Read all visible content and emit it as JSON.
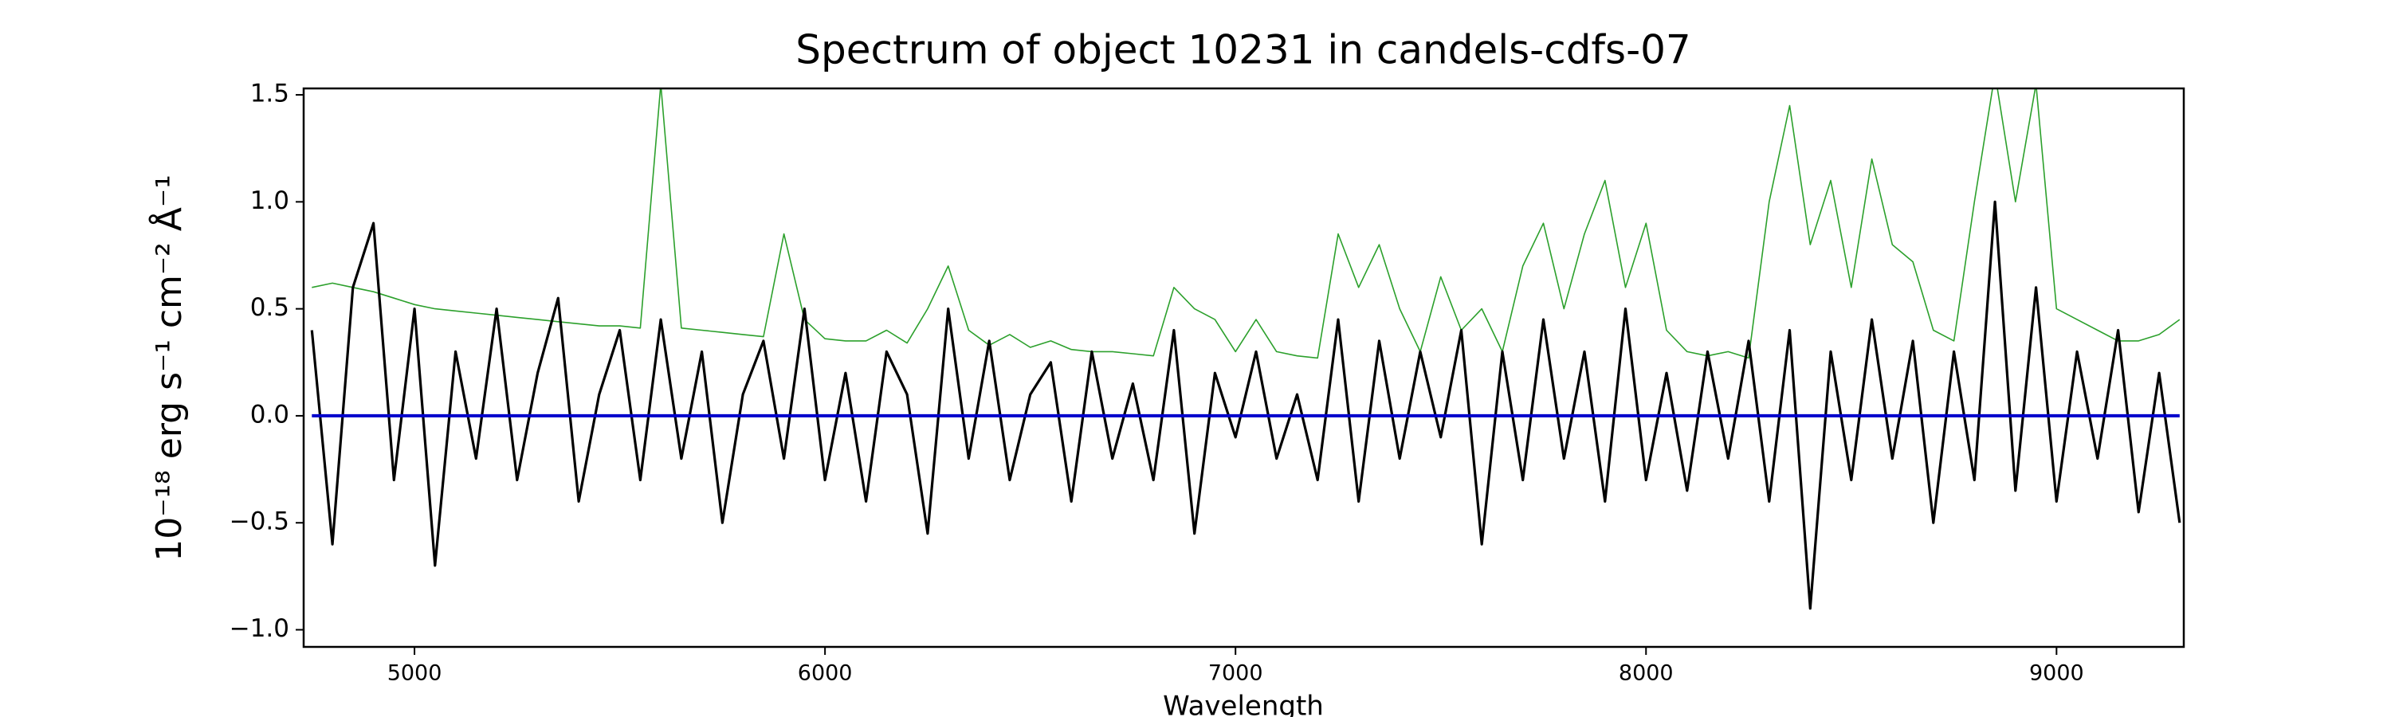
{
  "chart_data": {
    "type": "line",
    "title": "Spectrum of object 10231 in candels-cdfs-07",
    "xlabel": "Wavelength",
    "ylabel": "10⁻¹⁸ erg s⁻¹ cm⁻² Å⁻¹",
    "x": [
      4750,
      4800,
      4850,
      4900,
      4950,
      5000,
      5050,
      5100,
      5150,
      5200,
      5250,
      5300,
      5350,
      5400,
      5450,
      5500,
      5550,
      5600,
      5650,
      5700,
      5750,
      5800,
      5850,
      5900,
      5950,
      6000,
      6050,
      6100,
      6150,
      6200,
      6250,
      6300,
      6350,
      6400,
      6450,
      6500,
      6550,
      6600,
      6650,
      6700,
      6750,
      6800,
      6850,
      6900,
      6950,
      7000,
      7050,
      7100,
      7150,
      7200,
      7250,
      7300,
      7350,
      7400,
      7450,
      7500,
      7550,
      7600,
      7650,
      7700,
      7750,
      7800,
      7850,
      7900,
      7950,
      8000,
      8050,
      8100,
      8150,
      8200,
      8250,
      8300,
      8350,
      8400,
      8450,
      8500,
      8550,
      8600,
      8650,
      8700,
      8750,
      8800,
      8850,
      8900,
      8950,
      9000,
      9050,
      9100,
      9150,
      9200,
      9250,
      9300
    ],
    "series": [
      {
        "color": "#2ca02c",
        "values": [
          0.6,
          0.62,
          0.6,
          0.58,
          0.55,
          0.52,
          0.5,
          0.49,
          0.48,
          0.47,
          0.46,
          0.45,
          0.44,
          0.43,
          0.42,
          0.42,
          0.41,
          1.55,
          0.41,
          0.4,
          0.39,
          0.38,
          0.37,
          0.85,
          0.45,
          0.36,
          0.35,
          0.35,
          0.4,
          0.34,
          0.5,
          0.7,
          0.4,
          0.33,
          0.38,
          0.32,
          0.35,
          0.31,
          0.3,
          0.3,
          0.29,
          0.28,
          0.6,
          0.5,
          0.45,
          0.3,
          0.45,
          0.3,
          0.28,
          0.27,
          0.85,
          0.6,
          0.8,
          0.5,
          0.3,
          0.65,
          0.4,
          0.5,
          0.3,
          0.7,
          0.9,
          0.5,
          0.85,
          1.1,
          0.6,
          0.9,
          0.4,
          0.3,
          0.28,
          0.3,
          0.27,
          1.0,
          1.45,
          0.8,
          1.1,
          0.6,
          1.2,
          0.8,
          0.72,
          0.4,
          0.35,
          1.0,
          1.6,
          1.0,
          1.55,
          0.5,
          0.45,
          0.4,
          0.35,
          0.35,
          0.38,
          0.45
        ]
      },
      {
        "color": "#000000",
        "values": [
          0.4,
          -0.6,
          0.6,
          0.9,
          -0.3,
          0.5,
          -0.7,
          0.3,
          -0.2,
          0.5,
          -0.3,
          0.2,
          0.55,
          -0.4,
          0.1,
          0.4,
          -0.3,
          0.45,
          -0.2,
          0.3,
          -0.5,
          0.1,
          0.35,
          -0.2,
          0.5,
          -0.3,
          0.2,
          -0.4,
          0.3,
          0.1,
          -0.55,
          0.5,
          -0.2,
          0.35,
          -0.3,
          0.1,
          0.25,
          -0.4,
          0.3,
          -0.2,
          0.15,
          -0.3,
          0.4,
          -0.55,
          0.2,
          -0.1,
          0.3,
          -0.2,
          0.1,
          -0.3,
          0.45,
          -0.4,
          0.35,
          -0.2,
          0.3,
          -0.1,
          0.4,
          -0.6,
          0.3,
          -0.3,
          0.45,
          -0.2,
          0.3,
          -0.4,
          0.5,
          -0.3,
          0.2,
          -0.35,
          0.3,
          -0.2,
          0.35,
          -0.4,
          0.4,
          -0.9,
          0.3,
          -0.3,
          0.45,
          -0.2,
          0.35,
          -0.5,
          0.3,
          -0.3,
          1.0,
          -0.35,
          0.6,
          -0.4,
          0.3,
          -0.2,
          0.4,
          -0.45,
          0.2,
          -0.5
        ]
      },
      {
        "color": "#0000cc",
        "values": [
          0,
          0,
          0,
          0,
          0,
          0,
          0,
          0,
          0,
          0,
          0,
          0,
          0,
          0,
          0,
          0,
          0,
          0,
          0,
          0,
          0,
          0,
          0,
          0,
          0,
          0,
          0,
          0,
          0,
          0,
          0,
          0,
          0,
          0,
          0,
          0,
          0,
          0,
          0,
          0,
          0,
          0,
          0,
          0,
          0,
          0,
          0,
          0,
          0,
          0,
          0,
          0,
          0,
          0,
          0,
          0,
          0,
          0,
          0,
          0,
          0,
          0,
          0,
          0,
          0,
          0,
          0,
          0,
          0,
          0,
          0,
          0,
          0,
          0,
          0,
          0,
          0,
          0,
          0,
          0,
          0,
          0,
          0,
          0,
          0,
          0,
          0,
          0,
          0,
          0,
          0,
          0
        ]
      }
    ],
    "xlim": [
      4730,
      9310
    ],
    "ylim": [
      -1.08,
      1.53
    ],
    "xticks": [
      5000,
      6000,
      7000,
      8000,
      9000
    ],
    "yticks": [
      {
        "value": -1.0,
        "label": "−1.0"
      },
      {
        "value": -0.5,
        "label": "−0.5"
      },
      {
        "value": 0.0,
        "label": "0.0"
      },
      {
        "value": 0.5,
        "label": "0.5"
      },
      {
        "value": 1.0,
        "label": "1.0"
      },
      {
        "value": 1.5,
        "label": "1.5"
      }
    ]
  }
}
